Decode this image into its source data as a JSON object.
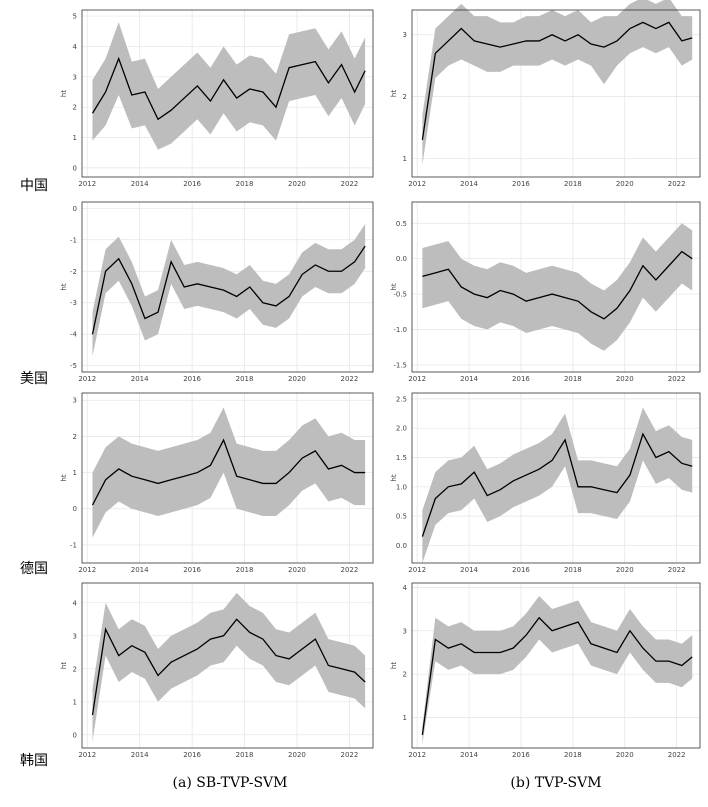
{
  "row_labels": [
    "中国",
    "美国",
    "德国",
    "韩国"
  ],
  "captions": [
    "(a) SB-TVP-SVM",
    "(b) TVP-SVM"
  ],
  "chart_data": [
    {
      "type": "line",
      "ylabel": "ht",
      "x": [
        2012.2,
        2012.7,
        2013.2,
        2013.7,
        2014.2,
        2014.7,
        2015.2,
        2015.7,
        2016.2,
        2016.7,
        2017.2,
        2017.7,
        2018.2,
        2018.7,
        2019.2,
        2019.7,
        2020.2,
        2020.7,
        2021.2,
        2021.7,
        2022.2,
        2022.6
      ],
      "xlim": [
        2011.8,
        2022.9
      ],
      "xticks": [
        2012,
        2014,
        2016,
        2018,
        2020,
        2022
      ],
      "ylim": [
        -0.3,
        5.2
      ],
      "yticks": [
        0,
        1,
        2,
        3,
        4,
        5
      ],
      "color": "#000000",
      "band_color": "#bdbdbd",
      "values": [
        1.8,
        2.5,
        3.6,
        2.4,
        2.5,
        1.6,
        1.9,
        2.3,
        2.7,
        2.2,
        2.9,
        2.3,
        2.6,
        2.5,
        2.0,
        3.3,
        3.4,
        3.5,
        2.8,
        3.4,
        2.5,
        3.2
      ],
      "lower": [
        0.9,
        1.4,
        2.4,
        1.3,
        1.4,
        0.6,
        0.8,
        1.2,
        1.6,
        1.1,
        1.8,
        1.2,
        1.5,
        1.4,
        0.9,
        2.2,
        2.3,
        2.4,
        1.7,
        2.3,
        1.4,
        2.1
      ],
      "upper": [
        2.9,
        3.6,
        4.8,
        3.5,
        3.6,
        2.6,
        3.0,
        3.4,
        3.8,
        3.3,
        4.0,
        3.4,
        3.7,
        3.6,
        3.1,
        4.4,
        4.5,
        4.6,
        3.9,
        4.5,
        3.6,
        4.3
      ]
    },
    {
      "type": "line",
      "ylabel": "ht",
      "x": [
        2012.2,
        2012.7,
        2013.2,
        2013.7,
        2014.2,
        2014.7,
        2015.2,
        2015.7,
        2016.2,
        2016.7,
        2017.2,
        2017.7,
        2018.2,
        2018.7,
        2019.2,
        2019.7,
        2020.2,
        2020.7,
        2021.2,
        2021.7,
        2022.2,
        2022.6
      ],
      "xlim": [
        2011.8,
        2022.9
      ],
      "xticks": [
        2012,
        2014,
        2016,
        2018,
        2020,
        2022
      ],
      "ylim": [
        0.7,
        3.4
      ],
      "yticks": [
        1,
        2,
        3
      ],
      "color": "#000000",
      "band_color": "#bdbdbd",
      "values": [
        1.3,
        2.7,
        2.9,
        3.1,
        2.9,
        2.85,
        2.8,
        2.85,
        2.9,
        2.9,
        3.0,
        2.9,
        3.0,
        2.85,
        2.8,
        2.9,
        3.1,
        3.2,
        3.1,
        3.2,
        2.9,
        2.95
      ],
      "lower": [
        0.9,
        2.3,
        2.5,
        2.6,
        2.5,
        2.4,
        2.4,
        2.5,
        2.5,
        2.5,
        2.6,
        2.5,
        2.6,
        2.5,
        2.2,
        2.5,
        2.7,
        2.8,
        2.7,
        2.8,
        2.5,
        2.6
      ],
      "upper": [
        1.7,
        3.1,
        3.3,
        3.5,
        3.3,
        3.3,
        3.2,
        3.2,
        3.3,
        3.3,
        3.4,
        3.3,
        3.4,
        3.2,
        3.3,
        3.3,
        3.5,
        3.6,
        3.5,
        3.6,
        3.3,
        3.3
      ]
    },
    {
      "type": "line",
      "ylabel": "ht",
      "x": [
        2012.2,
        2012.7,
        2013.2,
        2013.7,
        2014.2,
        2014.7,
        2015.2,
        2015.7,
        2016.2,
        2016.7,
        2017.2,
        2017.7,
        2018.2,
        2018.7,
        2019.2,
        2019.7,
        2020.2,
        2020.7,
        2021.2,
        2021.7,
        2022.2,
        2022.6
      ],
      "xlim": [
        2011.8,
        2022.9
      ],
      "xticks": [
        2012,
        2014,
        2016,
        2018,
        2020,
        2022
      ],
      "ylim": [
        -5.2,
        0.2
      ],
      "yticks": [
        -5,
        -4,
        -3,
        -2,
        -1,
        0
      ],
      "color": "#000000",
      "band_color": "#bdbdbd",
      "values": [
        -4.0,
        -2.0,
        -1.6,
        -2.4,
        -3.5,
        -3.3,
        -1.7,
        -2.5,
        -2.4,
        -2.5,
        -2.6,
        -2.8,
        -2.5,
        -3.0,
        -3.1,
        -2.8,
        -2.1,
        -1.8,
        -2.0,
        -2.0,
        -1.7,
        -1.2
      ],
      "lower": [
        -4.7,
        -2.7,
        -2.3,
        -3.1,
        -4.2,
        -4.0,
        -2.4,
        -3.2,
        -3.1,
        -3.2,
        -3.3,
        -3.5,
        -3.2,
        -3.7,
        -3.8,
        -3.5,
        -2.8,
        -2.5,
        -2.7,
        -2.7,
        -2.4,
        -1.9
      ],
      "upper": [
        -3.3,
        -1.3,
        -0.9,
        -1.7,
        -2.8,
        -2.6,
        -1.0,
        -1.8,
        -1.7,
        -1.8,
        -1.9,
        -2.1,
        -1.8,
        -2.3,
        -2.4,
        -2.1,
        -1.4,
        -1.1,
        -1.3,
        -1.3,
        -1.0,
        -0.5
      ]
    },
    {
      "type": "line",
      "ylabel": "ht",
      "x": [
        2012.2,
        2012.7,
        2013.2,
        2013.7,
        2014.2,
        2014.7,
        2015.2,
        2015.7,
        2016.2,
        2016.7,
        2017.2,
        2017.7,
        2018.2,
        2018.7,
        2019.2,
        2019.7,
        2020.2,
        2020.7,
        2021.2,
        2021.7,
        2022.2,
        2022.6
      ],
      "xlim": [
        2011.8,
        2022.9
      ],
      "xticks": [
        2012,
        2014,
        2016,
        2018,
        2020,
        2022
      ],
      "ylim": [
        -1.6,
        0.8
      ],
      "yticks": [
        -1.5,
        {
          "value": -1,
          "label": "-1.0"
        },
        -0.5,
        {
          "value": 0,
          "label": "0.0"
        },
        0.5
      ],
      "color": "#000000",
      "band_color": "#bdbdbd",
      "values": [
        -0.25,
        -0.2,
        -0.15,
        -0.4,
        -0.5,
        -0.55,
        -0.45,
        -0.5,
        -0.6,
        -0.55,
        -0.5,
        -0.55,
        -0.6,
        -0.75,
        -0.85,
        -0.7,
        -0.45,
        -0.1,
        -0.3,
        -0.1,
        0.1,
        0.0
      ],
      "lower": [
        -0.7,
        -0.65,
        -0.6,
        -0.85,
        -0.95,
        -1.0,
        -0.9,
        -0.95,
        -1.05,
        -1.0,
        -0.95,
        -1.0,
        -1.05,
        -1.2,
        -1.3,
        -1.15,
        -0.9,
        -0.55,
        -0.75,
        -0.55,
        -0.35,
        -0.45
      ],
      "upper": [
        0.15,
        0.2,
        0.25,
        0.0,
        -0.1,
        -0.15,
        -0.05,
        -0.1,
        -0.2,
        -0.15,
        -0.1,
        -0.15,
        -0.2,
        -0.35,
        -0.45,
        -0.3,
        -0.05,
        0.3,
        0.1,
        0.3,
        0.5,
        0.4
      ]
    },
    {
      "type": "line",
      "ylabel": "ht",
      "x": [
        2012.2,
        2012.7,
        2013.2,
        2013.7,
        2014.2,
        2014.7,
        2015.2,
        2015.7,
        2016.2,
        2016.7,
        2017.2,
        2017.7,
        2018.2,
        2018.7,
        2019.2,
        2019.7,
        2020.2,
        2020.7,
        2021.2,
        2021.7,
        2022.2,
        2022.6
      ],
      "xlim": [
        2011.8,
        2022.9
      ],
      "xticks": [
        2012,
        2014,
        2016,
        2018,
        2020,
        2022
      ],
      "ylim": [
        -1.5,
        3.2
      ],
      "yticks": [
        -1,
        0,
        1,
        2,
        3
      ],
      "color": "#000000",
      "band_color": "#bdbdbd",
      "values": [
        0.1,
        0.8,
        1.1,
        0.9,
        0.8,
        0.7,
        0.8,
        0.9,
        1.0,
        1.2,
        1.9,
        0.9,
        0.8,
        0.7,
        0.7,
        1.0,
        1.4,
        1.6,
        1.1,
        1.2,
        1.0,
        1.0
      ],
      "lower": [
        -0.8,
        -0.1,
        0.2,
        0.0,
        -0.1,
        -0.2,
        -0.1,
        0.0,
        0.1,
        0.3,
        1.0,
        0.0,
        -0.1,
        -0.2,
        -0.2,
        0.1,
        0.5,
        0.7,
        0.2,
        0.3,
        0.1,
        0.1
      ],
      "upper": [
        1.0,
        1.7,
        2.0,
        1.8,
        1.7,
        1.6,
        1.7,
        1.8,
        1.9,
        2.1,
        2.8,
        1.8,
        1.7,
        1.6,
        1.6,
        1.9,
        2.3,
        2.5,
        2.0,
        2.1,
        1.9,
        1.9
      ]
    },
    {
      "type": "line",
      "ylabel": "ht",
      "x": [
        2012.2,
        2012.7,
        2013.2,
        2013.7,
        2014.2,
        2014.7,
        2015.2,
        2015.7,
        2016.2,
        2016.7,
        2017.2,
        2017.7,
        2018.2,
        2018.7,
        2019.2,
        2019.7,
        2020.2,
        2020.7,
        2021.2,
        2021.7,
        2022.2,
        2022.6
      ],
      "xlim": [
        2011.8,
        2022.9
      ],
      "xticks": [
        2012,
        2014,
        2016,
        2018,
        2020,
        2022
      ],
      "ylim": [
        -0.3,
        2.6
      ],
      "yticks": [
        {
          "value": 0,
          "label": "0.0"
        },
        0.5,
        {
          "value": 1,
          "label": "1.0"
        },
        1.5,
        {
          "value": 2,
          "label": "2.0"
        },
        2.5
      ],
      "color": "#000000",
      "band_color": "#bdbdbd",
      "values": [
        0.15,
        0.8,
        1.0,
        1.05,
        1.25,
        0.85,
        0.95,
        1.1,
        1.2,
        1.3,
        1.45,
        1.8,
        1.0,
        1.0,
        0.95,
        0.9,
        1.2,
        1.9,
        1.5,
        1.6,
        1.4,
        1.35
      ],
      "lower": [
        -0.3,
        0.35,
        0.55,
        0.6,
        0.8,
        0.4,
        0.5,
        0.65,
        0.75,
        0.85,
        1.0,
        1.35,
        0.55,
        0.55,
        0.5,
        0.45,
        0.75,
        1.45,
        1.05,
        1.15,
        0.95,
        0.9
      ],
      "upper": [
        0.6,
        1.25,
        1.45,
        1.5,
        1.7,
        1.3,
        1.4,
        1.55,
        1.65,
        1.75,
        1.9,
        2.25,
        1.45,
        1.45,
        1.4,
        1.35,
        1.65,
        2.35,
        1.95,
        2.05,
        1.85,
        1.8
      ]
    },
    {
      "type": "line",
      "ylabel": "ht",
      "x": [
        2012.2,
        2012.7,
        2013.2,
        2013.7,
        2014.2,
        2014.7,
        2015.2,
        2015.7,
        2016.2,
        2016.7,
        2017.2,
        2017.7,
        2018.2,
        2018.7,
        2019.2,
        2019.7,
        2020.2,
        2020.7,
        2021.2,
        2021.7,
        2022.2,
        2022.6
      ],
      "xlim": [
        2011.8,
        2022.9
      ],
      "xticks": [
        2012,
        2014,
        2016,
        2018,
        2020,
        2022
      ],
      "ylim": [
        -0.4,
        4.6
      ],
      "yticks": [
        0,
        1,
        2,
        3,
        4
      ],
      "color": "#000000",
      "band_color": "#bdbdbd",
      "values": [
        0.6,
        3.2,
        2.4,
        2.7,
        2.5,
        1.8,
        2.2,
        2.4,
        2.6,
        2.9,
        3.0,
        3.5,
        3.1,
        2.9,
        2.4,
        2.3,
        2.6,
        2.9,
        2.1,
        2.0,
        1.9,
        1.6
      ],
      "lower": [
        -0.2,
        2.4,
        1.6,
        1.9,
        1.7,
        1.0,
        1.4,
        1.6,
        1.8,
        2.1,
        2.2,
        2.7,
        2.3,
        2.1,
        1.6,
        1.5,
        1.8,
        2.1,
        1.3,
        1.2,
        1.1,
        0.8
      ],
      "upper": [
        1.4,
        4.0,
        3.2,
        3.5,
        3.3,
        2.6,
        3.0,
        3.2,
        3.4,
        3.7,
        3.8,
        4.3,
        3.9,
        3.7,
        3.2,
        3.1,
        3.4,
        3.7,
        2.9,
        2.8,
        2.7,
        2.4
      ]
    },
    {
      "type": "line",
      "ylabel": "ht",
      "x": [
        2012.2,
        2012.7,
        2013.2,
        2013.7,
        2014.2,
        2014.7,
        2015.2,
        2015.7,
        2016.2,
        2016.7,
        2017.2,
        2017.7,
        2018.2,
        2018.7,
        2019.2,
        2019.7,
        2020.2,
        2020.7,
        2021.2,
        2021.7,
        2022.2,
        2022.6
      ],
      "xlim": [
        2011.8,
        2022.9
      ],
      "xticks": [
        2012,
        2014,
        2016,
        2018,
        2020,
        2022
      ],
      "ylim": [
        0.3,
        4.1
      ],
      "yticks": [
        1,
        2,
        3,
        4
      ],
      "color": "#000000",
      "band_color": "#bdbdbd",
      "values": [
        0.6,
        2.8,
        2.6,
        2.7,
        2.5,
        2.5,
        2.5,
        2.6,
        2.9,
        3.3,
        3.0,
        3.1,
        3.2,
        2.7,
        2.6,
        2.5,
        3.0,
        2.6,
        2.3,
        2.3,
        2.2,
        2.4
      ],
      "lower": [
        0.4,
        2.3,
        2.1,
        2.2,
        2.0,
        2.0,
        2.0,
        2.1,
        2.4,
        2.8,
        2.5,
        2.6,
        2.7,
        2.2,
        2.1,
        2.0,
        2.5,
        2.1,
        1.8,
        1.8,
        1.7,
        1.9
      ],
      "upper": [
        0.8,
        3.3,
        3.1,
        3.2,
        3.0,
        3.0,
        3.0,
        3.1,
        3.4,
        3.8,
        3.5,
        3.6,
        3.7,
        3.2,
        3.1,
        3.0,
        3.5,
        3.1,
        2.8,
        2.8,
        2.7,
        2.9
      ]
    }
  ]
}
